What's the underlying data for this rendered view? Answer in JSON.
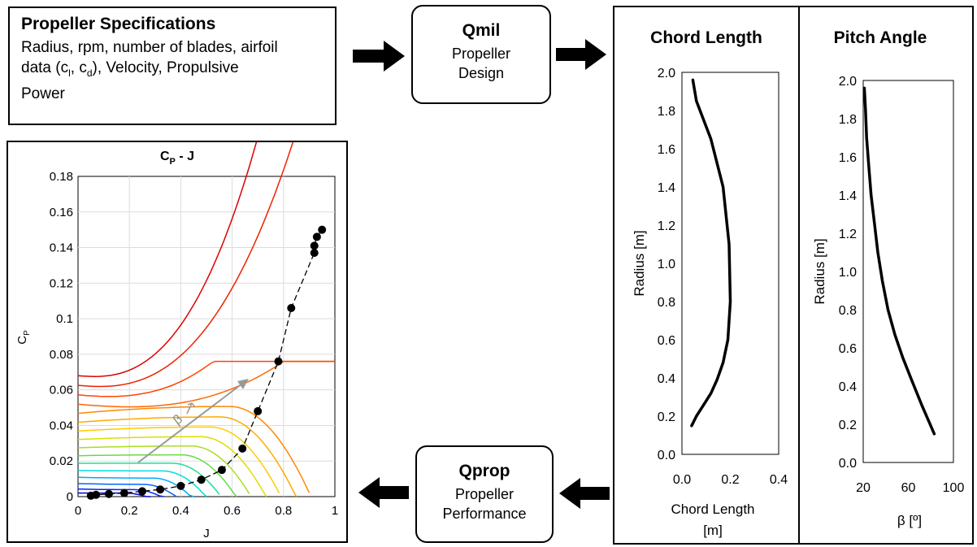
{
  "spec_box": {
    "title": "Propeller Specifications",
    "body_line1": "Radius, rpm, number of blades, airfoil",
    "body_line2_pre": "data (c",
    "cl_sub": "l",
    "body_line2_mid": ", c",
    "cd_sub": "d",
    "body_line2_post": "), Velocity, Propulsive",
    "body_line3": "Power"
  },
  "qmil_box": {
    "title": "Qmil",
    "line1": "Propeller",
    "line2": "Design"
  },
  "qprop_box": {
    "title": "Qprop",
    "line1": "Propeller",
    "line2": "Performance"
  },
  "cp_chart": {
    "title_main": "C",
    "title_sub": "P",
    "title_rest": " - J",
    "xlabel": "J",
    "ylabel_main": "C",
    "ylabel_sub": "P",
    "x_ticks": [
      "0",
      "0.2",
      "0.4",
      "0.6",
      "0.8",
      "1"
    ],
    "y_ticks": [
      "0",
      "0.02",
      "0.04",
      "0.06",
      "0.08",
      "0.1",
      "0.12",
      "0.14",
      "0.16",
      "0.18"
    ],
    "beta_label": "β",
    "contour_colors": [
      "#0000dd",
      "#0022ff",
      "#0066ff",
      "#00aaff",
      "#00dddd",
      "#22dd99",
      "#66dd44",
      "#aadd22",
      "#dddd00",
      "#ffcc00",
      "#ffaa00",
      "#ff8800",
      "#ff6600",
      "#ff4400",
      "#ee2200",
      "#dd0000"
    ]
  },
  "chord_panel": {
    "title": "Chord Length",
    "xlabel_line1": "Chord Length",
    "xlabel_line2": "[m]",
    "ylabel": "Radius [m]",
    "x_ticks": [
      "0.0",
      "0.2",
      "0.4"
    ],
    "y_ticks": [
      "0.0",
      "0.2",
      "0.4",
      "0.6",
      "0.8",
      "1.0",
      "1.2",
      "1.4",
      "1.6",
      "1.8",
      "2.0"
    ]
  },
  "pitch_panel": {
    "title": "Pitch Angle",
    "xlabel": "β [º]",
    "ylabel": "Radius [m]",
    "x_ticks": [
      "20",
      "60",
      "100"
    ],
    "y_ticks": [
      "0.0",
      "0.2",
      "0.4",
      "0.6",
      "0.8",
      "1.0",
      "1.2",
      "1.4",
      "1.6",
      "1.8",
      "2.0"
    ]
  },
  "chart_data": [
    {
      "type": "line",
      "title": "CP - J",
      "xlabel": "J",
      "ylabel": "CP",
      "xlim": [
        0,
        1
      ],
      "ylim": [
        0,
        0.18
      ],
      "grid": true,
      "series": [
        {
          "x": [
            0.05,
            0.07,
            0.12,
            0.18,
            0.25,
            0.32,
            0.4,
            0.48,
            0.56,
            0.64,
            0.7,
            0.78,
            0.83,
            0.92,
            0.92,
            0.93,
            0.95
          ],
          "y": [
            0.0005,
            0.001,
            0.0015,
            0.002,
            0.003,
            0.004,
            0.006,
            0.0095,
            0.015,
            0.027,
            0.048,
            0.076,
            0.106,
            0.137,
            0.141,
            0.146,
            0.15
          ]
        }
      ]
    },
    {
      "type": "line",
      "title": "Chord Length",
      "xlabel": "Chord Length [m]",
      "ylabel": "Radius [m]",
      "xlim": [
        0,
        0.4
      ],
      "ylim": [
        0,
        2.0
      ],
      "series": [
        {
          "x": [
            0.04,
            0.06,
            0.09,
            0.12,
            0.145,
            0.17,
            0.19,
            0.2,
            0.195,
            0.17,
            0.12,
            0.06,
            0.045
          ],
          "y": [
            0.15,
            0.2,
            0.26,
            0.32,
            0.39,
            0.48,
            0.6,
            0.8,
            1.1,
            1.4,
            1.65,
            1.85,
            1.96
          ]
        }
      ]
    },
    {
      "type": "line",
      "title": "Pitch Angle",
      "xlabel": "β [º]",
      "ylabel": "Radius [m]",
      "xlim": [
        20,
        100
      ],
      "ylim": [
        0,
        2.0
      ],
      "series": [
        {
          "x": [
            21,
            22,
            23,
            25,
            27,
            30,
            33,
            37,
            42,
            48,
            55,
            63,
            72,
            83
          ],
          "y": [
            1.96,
            1.85,
            1.7,
            1.55,
            1.4,
            1.25,
            1.1,
            0.95,
            0.8,
            0.67,
            0.55,
            0.43,
            0.3,
            0.15
          ]
        }
      ]
    }
  ]
}
